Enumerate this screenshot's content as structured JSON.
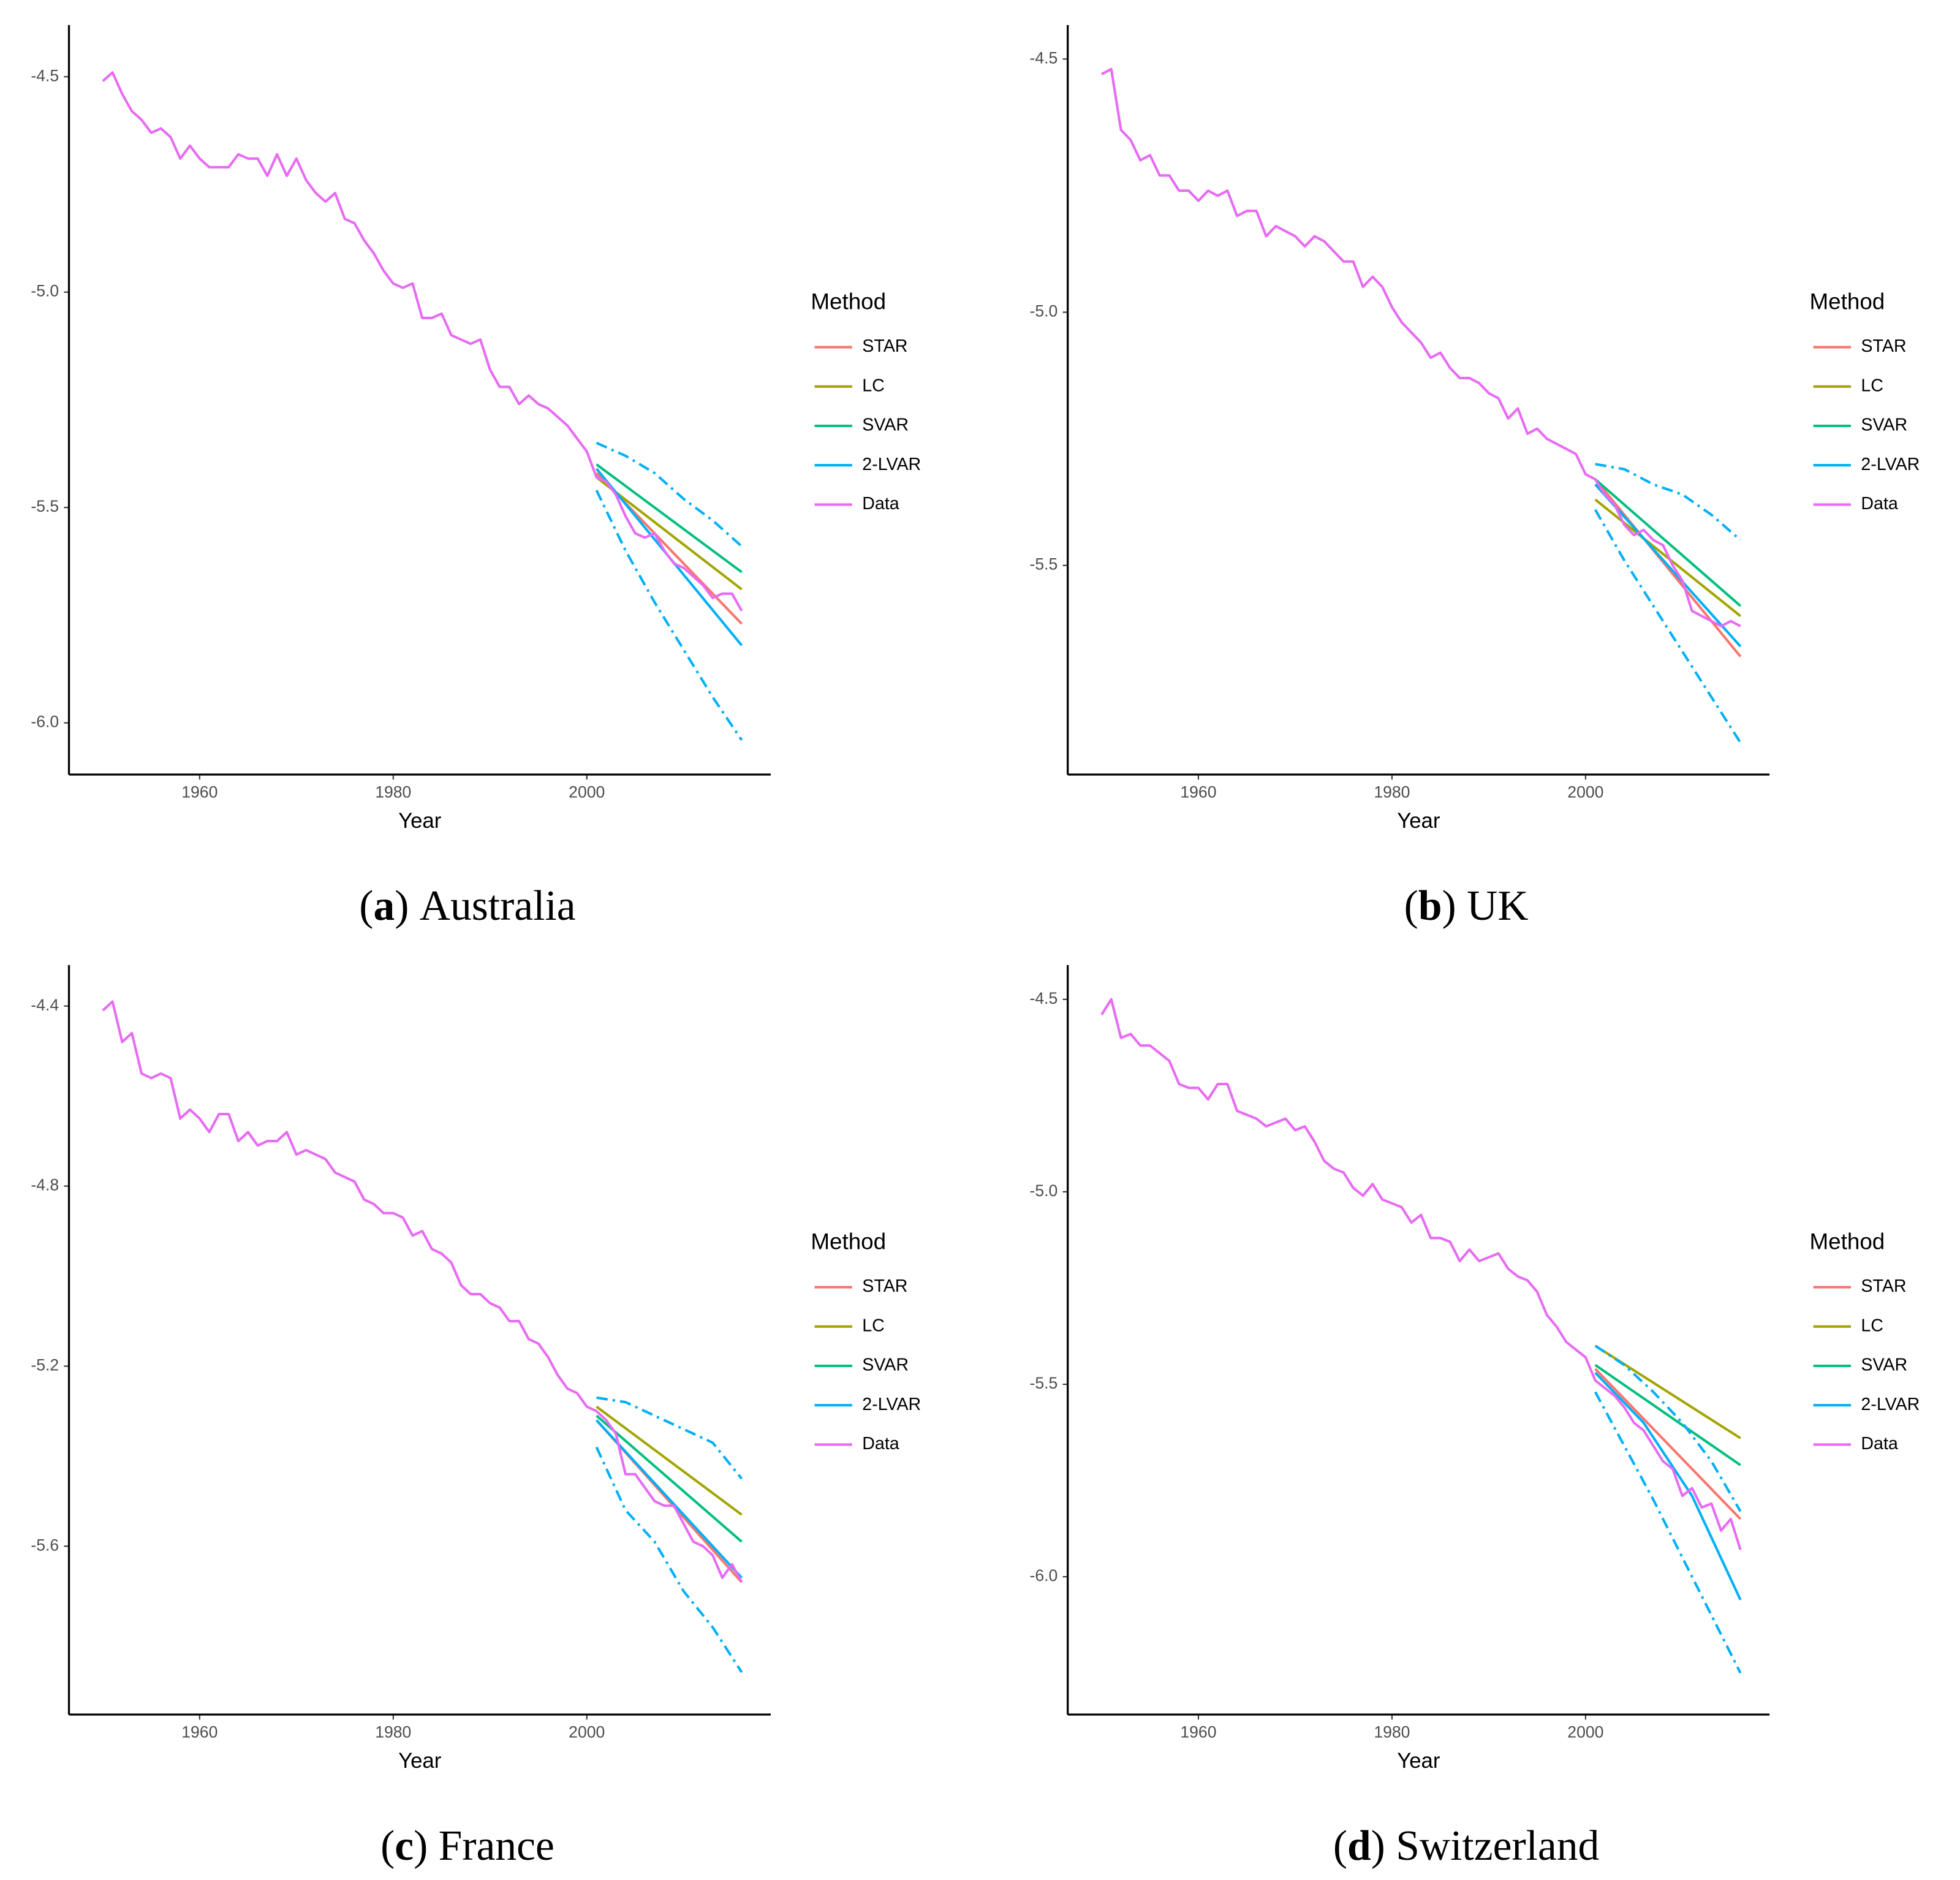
{
  "chart_data": [
    {
      "type": "line",
      "caption": {
        "open": "(",
        "label": "a",
        "close": ")",
        "text": "Australia"
      },
      "xlabel": "Year",
      "legend_title": "Method",
      "legend": "right",
      "xlim": [
        1946.5,
        2019
      ],
      "xticks": [
        1960,
        1980,
        2000
      ],
      "ylim": [
        -6.12,
        -4.38
      ],
      "yticks": [
        -4.5,
        {
          "value": -5.0,
          "label": "-5.0"
        },
        -5.5,
        {
          "value": -6.0,
          "label": "-6.0"
        }
      ],
      "series": [
        {
          "name": "STAR",
          "color": "#F8766D",
          "x": [
            2001,
            2016
          ],
          "values": [
            -5.42,
            -5.77
          ]
        },
        {
          "name": "LC",
          "color": "#A3A500",
          "x": [
            2001,
            2016
          ],
          "values": [
            -5.43,
            -5.69
          ]
        },
        {
          "name": "SVAR",
          "color": "#00BF7D",
          "x": [
            2001,
            2016
          ],
          "values": [
            -5.4,
            -5.65
          ]
        },
        {
          "name": "2-LVAR",
          "color": "#00B0F6",
          "x": [
            2001,
            2016
          ],
          "values": [
            -5.41,
            -5.82
          ]
        },
        {
          "name": "Data",
          "color": "#E76BF3",
          "x": [
            1950,
            1951,
            1952,
            1953,
            1954,
            1955,
            1956,
            1957,
            1958,
            1959,
            1960,
            1961,
            1962,
            1963,
            1964,
            1965,
            1966,
            1967,
            1968,
            1969,
            1970,
            1971,
            1972,
            1973,
            1974,
            1975,
            1976,
            1977,
            1978,
            1979,
            1980,
            1981,
            1982,
            1983,
            1984,
            1985,
            1986,
            1987,
            1988,
            1989,
            1990,
            1991,
            1992,
            1993,
            1994,
            1995,
            1996,
            1997,
            1998,
            1999,
            2000,
            2001,
            2002,
            2003,
            2004,
            2005,
            2006,
            2007,
            2008,
            2009,
            2010,
            2011,
            2012,
            2013,
            2014,
            2015,
            2016
          ],
          "values": [
            -4.51,
            -4.49,
            -4.54,
            -4.58,
            -4.6,
            -4.63,
            -4.62,
            -4.64,
            -4.69,
            -4.66,
            -4.69,
            -4.71,
            -4.71,
            -4.71,
            -4.68,
            -4.69,
            -4.69,
            -4.73,
            -4.68,
            -4.73,
            -4.69,
            -4.74,
            -4.77,
            -4.79,
            -4.77,
            -4.83,
            -4.84,
            -4.88,
            -4.91,
            -4.95,
            -4.98,
            -4.99,
            -4.98,
            -5.06,
            -5.06,
            -5.05,
            -5.1,
            -5.11,
            -5.12,
            -5.11,
            -5.18,
            -5.22,
            -5.22,
            -5.26,
            -5.24,
            -5.26,
            -5.27,
            -5.29,
            -5.31,
            -5.34,
            -5.37,
            -5.43,
            -5.44,
            -5.47,
            -5.52,
            -5.56,
            -5.57,
            -5.56,
            -5.6,
            -5.63,
            -5.64,
            -5.66,
            -5.68,
            -5.71,
            -5.7,
            -5.7,
            -5.74
          ]
        },
        {
          "color": "#00B0F6",
          "dash": "dashdot",
          "x": [
            2001,
            2004,
            2007,
            2010,
            2013,
            2016
          ],
          "values": [
            -5.35,
            -5.38,
            -5.42,
            -5.48,
            -5.53,
            -5.59
          ]
        },
        {
          "color": "#00B0F6",
          "dash": "dashdot",
          "x": [
            2001,
            2004,
            2007,
            2010,
            2013,
            2016
          ],
          "values": [
            -5.46,
            -5.6,
            -5.72,
            -5.83,
            -5.94,
            -6.04
          ]
        }
      ]
    },
    {
      "type": "line",
      "caption": {
        "open": "(",
        "label": "b",
        "close": ")",
        "text": "UK"
      },
      "xlabel": "Year",
      "legend_title": "Method",
      "legend": "right",
      "xlim": [
        1946.5,
        2019
      ],
      "xticks": [
        1960,
        1980,
        2000
      ],
      "ylim": [
        -5.913,
        -4.433
      ],
      "yticks": [
        -4.5,
        {
          "value": -5.0,
          "label": "-5.0"
        },
        -5.5
      ],
      "series": [
        {
          "name": "STAR",
          "color": "#F8766D",
          "x": [
            2001,
            2016
          ],
          "values": [
            -5.33,
            -5.68
          ]
        },
        {
          "name": "LC",
          "color": "#A3A500",
          "x": [
            2001,
            2016
          ],
          "values": [
            -5.37,
            -5.6
          ]
        },
        {
          "name": "SVAR",
          "color": "#00BF7D",
          "x": [
            2001,
            2016
          ],
          "values": [
            -5.33,
            -5.58
          ]
        },
        {
          "name": "2-LVAR",
          "color": "#00B0F6",
          "x": [
            2001,
            2016
          ],
          "values": [
            -5.34,
            -5.66
          ]
        },
        {
          "name": "Data",
          "color": "#E76BF3",
          "x": [
            1950,
            1951,
            1952,
            1953,
            1954,
            1955,
            1956,
            1957,
            1958,
            1959,
            1960,
            1961,
            1962,
            1963,
            1964,
            1965,
            1966,
            1967,
            1968,
            1969,
            1970,
            1971,
            1972,
            1973,
            1974,
            1975,
            1976,
            1977,
            1978,
            1979,
            1980,
            1981,
            1982,
            1983,
            1984,
            1985,
            1986,
            1987,
            1988,
            1989,
            1990,
            1991,
            1992,
            1993,
            1994,
            1995,
            1996,
            1997,
            1998,
            1999,
            2000,
            2001,
            2002,
            2003,
            2004,
            2005,
            2006,
            2007,
            2008,
            2009,
            2010,
            2011,
            2012,
            2013,
            2014,
            2015,
            2016
          ],
          "values": [
            -4.53,
            -4.52,
            -4.64,
            -4.66,
            -4.7,
            -4.69,
            -4.73,
            -4.73,
            -4.76,
            -4.76,
            -4.78,
            -4.76,
            -4.77,
            -4.76,
            -4.81,
            -4.8,
            -4.8,
            -4.85,
            -4.83,
            -4.84,
            -4.85,
            -4.87,
            -4.85,
            -4.86,
            -4.88,
            -4.9,
            -4.9,
            -4.95,
            -4.93,
            -4.95,
            -4.99,
            -5.02,
            -5.04,
            -5.06,
            -5.09,
            -5.08,
            -5.11,
            -5.13,
            -5.13,
            -5.14,
            -5.16,
            -5.17,
            -5.21,
            -5.19,
            -5.24,
            -5.23,
            -5.25,
            -5.26,
            -5.27,
            -5.28,
            -5.32,
            -5.33,
            -5.36,
            -5.38,
            -5.42,
            -5.44,
            -5.43,
            -5.45,
            -5.46,
            -5.5,
            -5.53,
            -5.59,
            -5.6,
            -5.61,
            -5.62,
            -5.61,
            -5.62
          ]
        },
        {
          "color": "#00B0F6",
          "dash": "dashdot",
          "x": [
            2001,
            2004,
            2007,
            2010,
            2013,
            2016
          ],
          "values": [
            -5.3,
            -5.31,
            -5.34,
            -5.36,
            -5.4,
            -5.45
          ]
        },
        {
          "color": "#00B0F6",
          "dash": "dashdot",
          "x": [
            2001,
            2004,
            2007,
            2010,
            2013,
            2016
          ],
          "values": [
            -5.39,
            -5.49,
            -5.58,
            -5.67,
            -5.76,
            -5.85
          ]
        }
      ]
    },
    {
      "type": "line",
      "caption": {
        "open": "(",
        "label": "c",
        "close": ")",
        "text": "France"
      },
      "xlabel": "Year",
      "legend_title": "Method",
      "legend": "right",
      "xlim": [
        1946.5,
        2019
      ],
      "xticks": [
        1960,
        1980,
        2000
      ],
      "ylim": [
        -5.974,
        -4.309
      ],
      "yticks": [
        -4.4,
        -4.8,
        -5.2,
        -5.6
      ],
      "series": [
        {
          "name": "STAR",
          "color": "#F8766D",
          "x": [
            2001,
            2016
          ],
          "values": [
            -5.32,
            -5.68
          ]
        },
        {
          "name": "LC",
          "color": "#A3A500",
          "x": [
            2001,
            2016
          ],
          "values": [
            -5.29,
            -5.53
          ]
        },
        {
          "name": "SVAR",
          "color": "#00BF7D",
          "x": [
            2001,
            2016
          ],
          "values": [
            -5.31,
            -5.59
          ]
        },
        {
          "name": "2-LVAR",
          "color": "#00B0F6",
          "x": [
            2001,
            2016
          ],
          "values": [
            -5.32,
            -5.67
          ]
        },
        {
          "name": "Data",
          "color": "#E76BF3",
          "x": [
            1950,
            1951,
            1952,
            1953,
            1954,
            1955,
            1956,
            1957,
            1958,
            1959,
            1960,
            1961,
            1962,
            1963,
            1964,
            1965,
            1966,
            1967,
            1968,
            1969,
            1970,
            1971,
            1972,
            1973,
            1974,
            1975,
            1976,
            1977,
            1978,
            1979,
            1980,
            1981,
            1982,
            1983,
            1984,
            1985,
            1986,
            1987,
            1988,
            1989,
            1990,
            1991,
            1992,
            1993,
            1994,
            1995,
            1996,
            1997,
            1998,
            1999,
            2000,
            2001,
            2002,
            2003,
            2004,
            2005,
            2006,
            2007,
            2008,
            2009,
            2010,
            2011,
            2012,
            2013,
            2014,
            2015,
            2016
          ],
          "values": [
            -4.41,
            -4.39,
            -4.48,
            -4.46,
            -4.55,
            -4.56,
            -4.55,
            -4.56,
            -4.65,
            -4.63,
            -4.65,
            -4.68,
            -4.64,
            -4.64,
            -4.7,
            -4.68,
            -4.71,
            -4.7,
            -4.7,
            -4.68,
            -4.73,
            -4.72,
            -4.73,
            -4.74,
            -4.77,
            -4.78,
            -4.79,
            -4.83,
            -4.84,
            -4.86,
            -4.86,
            -4.87,
            -4.91,
            -4.9,
            -4.94,
            -4.95,
            -4.97,
            -5.02,
            -5.04,
            -5.04,
            -5.06,
            -5.07,
            -5.1,
            -5.1,
            -5.14,
            -5.15,
            -5.18,
            -5.22,
            -5.25,
            -5.26,
            -5.29,
            -5.3,
            -5.32,
            -5.35,
            -5.44,
            -5.44,
            -5.47,
            -5.5,
            -5.51,
            -5.51,
            -5.55,
            -5.59,
            -5.6,
            -5.62,
            -5.67,
            -5.64,
            -5.68
          ]
        },
        {
          "color": "#00B0F6",
          "dash": "dashdot",
          "x": [
            2001,
            2004,
            2007,
            2010,
            2013,
            2016
          ],
          "values": [
            -5.27,
            -5.28,
            -5.31,
            -5.34,
            -5.37,
            -5.45
          ]
        },
        {
          "color": "#00B0F6",
          "dash": "dashdot",
          "x": [
            2001,
            2004,
            2007,
            2010,
            2013,
            2016
          ],
          "values": [
            -5.38,
            -5.52,
            -5.59,
            -5.7,
            -5.78,
            -5.88
          ]
        }
      ]
    },
    {
      "type": "line",
      "caption": {
        "open": "(",
        "label": "d",
        "close": ")",
        "text": "Switzerland"
      },
      "xlabel": "Year",
      "legend_title": "Method",
      "legend": "right",
      "xlim": [
        1946.5,
        2019
      ],
      "xticks": [
        1960,
        1980,
        2000
      ],
      "ylim": [
        -6.358,
        -4.411
      ],
      "yticks": [
        -4.5,
        {
          "value": -5.0,
          "label": "-5.0"
        },
        -5.5,
        {
          "value": -6.0,
          "label": "-6.0"
        }
      ],
      "series": [
        {
          "name": "STAR",
          "color": "#F8766D",
          "x": [
            2001,
            2016
          ],
          "values": [
            -5.46,
            -5.85
          ]
        },
        {
          "name": "LC",
          "color": "#A3A500",
          "x": [
            2001,
            2016
          ],
          "values": [
            -5.4,
            -5.64
          ]
        },
        {
          "name": "SVAR",
          "color": "#00BF7D",
          "x": [
            2001,
            2016
          ],
          "values": [
            -5.45,
            -5.71
          ]
        },
        {
          "name": "2-LVAR",
          "color": "#00B0F6",
          "x": [
            2001,
            2006,
            2011,
            2016
          ],
          "values": [
            -5.47,
            -5.6,
            -5.79,
            -6.06
          ]
        },
        {
          "name": "Data",
          "color": "#E76BF3",
          "x": [
            1950,
            1951,
            1952,
            1953,
            1954,
            1955,
            1956,
            1957,
            1958,
            1959,
            1960,
            1961,
            1962,
            1963,
            1964,
            1965,
            1966,
            1967,
            1968,
            1969,
            1970,
            1971,
            1972,
            1973,
            1974,
            1975,
            1976,
            1977,
            1978,
            1979,
            1980,
            1981,
            1982,
            1983,
            1984,
            1985,
            1986,
            1987,
            1988,
            1989,
            1990,
            1991,
            1992,
            1993,
            1994,
            1995,
            1996,
            1997,
            1998,
            1999,
            2000,
            2001,
            2002,
            2003,
            2004,
            2005,
            2006,
            2007,
            2008,
            2009,
            2010,
            2011,
            2012,
            2013,
            2014,
            2015,
            2016
          ],
          "values": [
            -4.54,
            -4.5,
            -4.6,
            -4.59,
            -4.62,
            -4.62,
            -4.64,
            -4.66,
            -4.72,
            -4.73,
            -4.73,
            -4.76,
            -4.72,
            -4.72,
            -4.79,
            -4.8,
            -4.81,
            -4.83,
            -4.82,
            -4.81,
            -4.84,
            -4.83,
            -4.87,
            -4.92,
            -4.94,
            -4.95,
            -4.99,
            -5.01,
            -4.98,
            -5.02,
            -5.03,
            -5.04,
            -5.08,
            -5.06,
            -5.12,
            -5.12,
            -5.13,
            -5.18,
            -5.15,
            -5.18,
            -5.17,
            -5.16,
            -5.2,
            -5.22,
            -5.23,
            -5.26,
            -5.32,
            -5.35,
            -5.39,
            -5.41,
            -5.43,
            -5.49,
            -5.51,
            -5.53,
            -5.56,
            -5.6,
            -5.62,
            -5.66,
            -5.7,
            -5.72,
            -5.79,
            -5.77,
            -5.82,
            -5.81,
            -5.88,
            -5.85,
            -5.93
          ]
        },
        {
          "color": "#00B0F6",
          "dash": "dashdot",
          "x": [
            2001,
            2004,
            2007,
            2010,
            2013,
            2016
          ],
          "values": [
            -5.4,
            -5.45,
            -5.52,
            -5.6,
            -5.7,
            -5.83
          ]
        },
        {
          "color": "#00B0F6",
          "dash": "dashdot",
          "x": [
            2001,
            2004,
            2007,
            2010,
            2013,
            2016
          ],
          "values": [
            -5.52,
            -5.66,
            -5.8,
            -5.95,
            -6.1,
            -6.25
          ]
        }
      ]
    }
  ]
}
